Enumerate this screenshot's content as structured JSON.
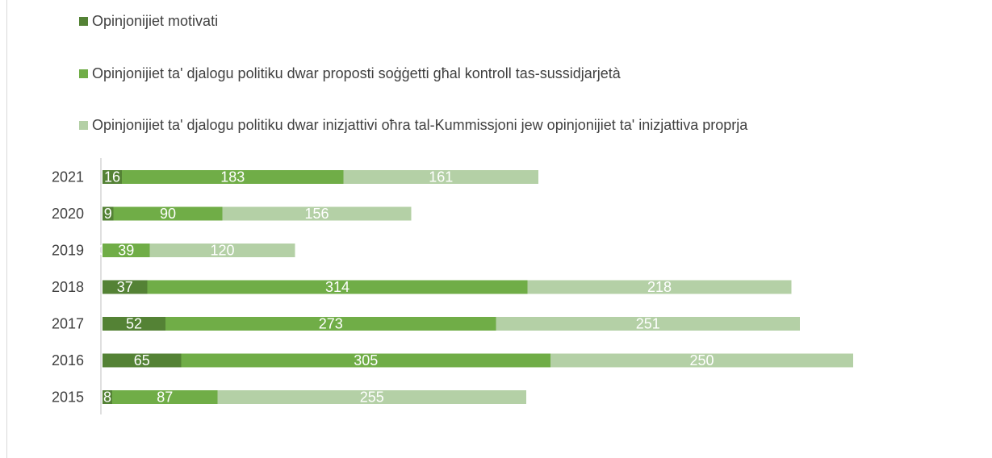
{
  "chart_data": {
    "type": "bar",
    "orientation": "horizontal",
    "stacked": true,
    "categories": [
      "2021",
      "2020",
      "2019",
      "2018",
      "2017",
      "2016",
      "2015"
    ],
    "series": [
      {
        "name": "Opinjonijiet motivati",
        "color": "#548235",
        "values": [
          16,
          9,
          0,
          37,
          52,
          65,
          8
        ]
      },
      {
        "name": "Opinjonijiet ta' djalogu politiku dwar proposti soġġetti għal kontroll tas-sussidjarjetà",
        "color": "#70ad47",
        "values": [
          183,
          90,
          39,
          314,
          273,
          305,
          87
        ]
      },
      {
        "name": "Opinjonijiet ta' djalogu politiku dwar inizjattivi oħra tal-Kummissjoni jew opinjonijiet ta' inizjattiva proprja",
        "color": "#b4d0a6",
        "values": [
          161,
          156,
          120,
          218,
          251,
          250,
          255
        ]
      }
    ],
    "title": "",
    "xlabel": "",
    "ylabel": "",
    "legend": "top",
    "grid": false
  }
}
